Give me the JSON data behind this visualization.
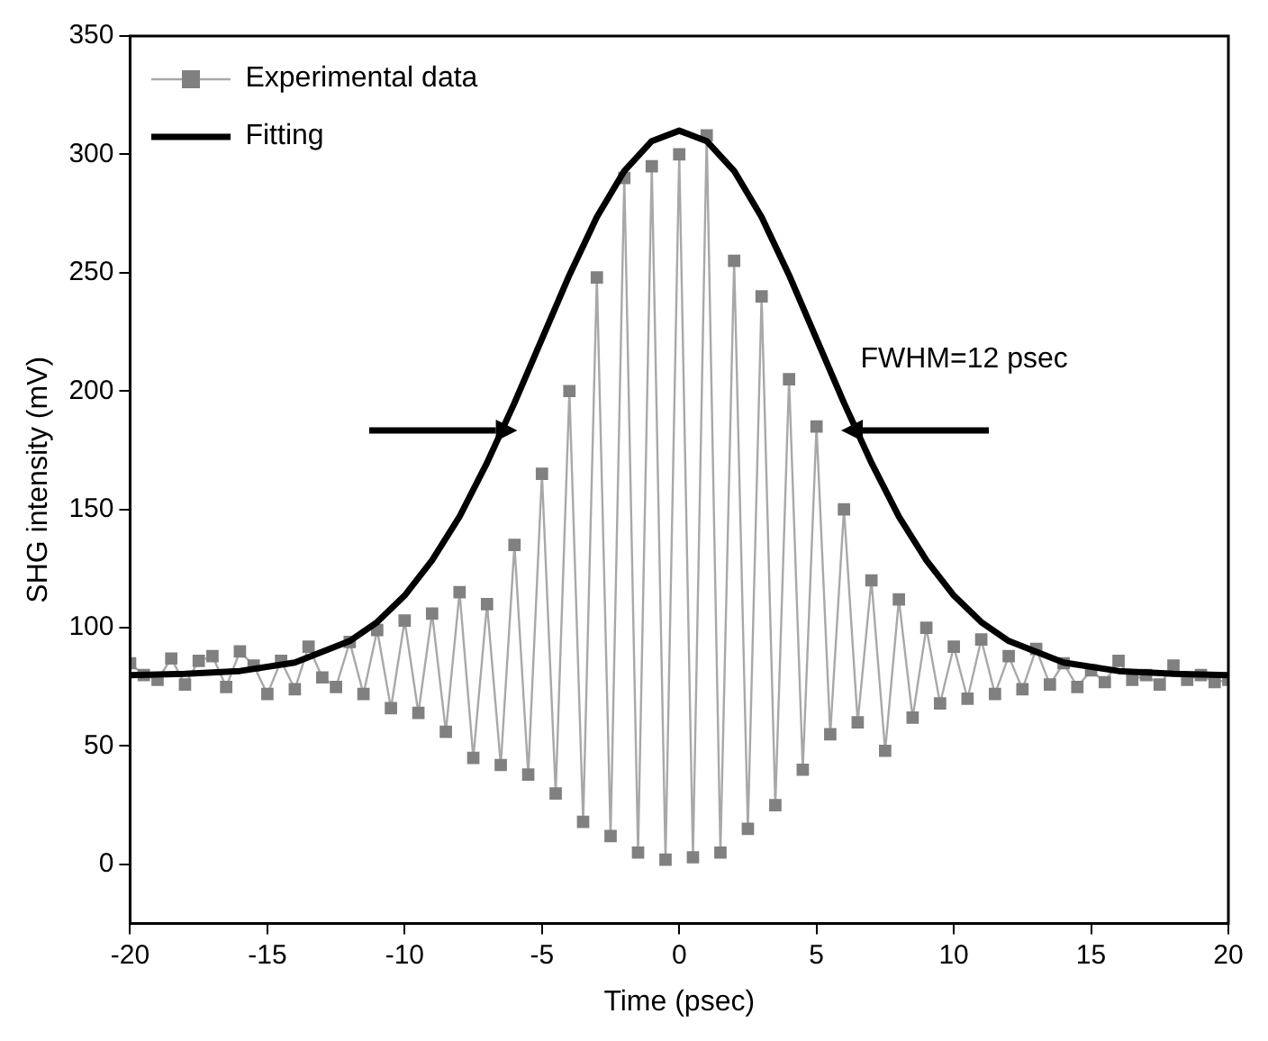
{
  "chart_data": {
    "type": "line",
    "xlabel": "Time (psec)",
    "ylabel": "SHG intensity (mV)",
    "xlim": [
      -20,
      20
    ],
    "xticks": [
      -20,
      -15,
      -10,
      -5,
      0,
      5,
      10,
      15,
      20
    ],
    "ylim": [
      -25,
      350
    ],
    "yticks": [
      0,
      50,
      100,
      150,
      200,
      250,
      300,
      350
    ],
    "legend": "top left",
    "annotations": [
      "FWHM=12 psec"
    ],
    "series": [
      {
        "name": "Experimental data",
        "marker": "square",
        "color": "#808080",
        "x": [
          -20,
          -19.5,
          -19,
          -18.5,
          -18,
          -17.5,
          -17,
          -16.5,
          -16,
          -15.5,
          -15,
          -14.5,
          -14,
          -13.5,
          -13,
          -12.5,
          -12,
          -11.5,
          -11,
          -10.5,
          -10,
          -9.5,
          -9,
          -8.5,
          -8,
          -7.5,
          -7,
          -6.5,
          -6,
          -5.5,
          -5,
          -4.5,
          -4,
          -3.5,
          -3,
          -2.5,
          -2,
          -1.5,
          -1,
          -0.5,
          0,
          0.5,
          1,
          1.5,
          2,
          2.5,
          3,
          3.5,
          4,
          4.5,
          5,
          5.5,
          6,
          6.5,
          7,
          7.5,
          8,
          8.5,
          9,
          9.5,
          10,
          10.5,
          11,
          11.5,
          12,
          12.5,
          13,
          13.5,
          14,
          14.5,
          15,
          15.5,
          16,
          16.5,
          17,
          17.5,
          18,
          18.5,
          19,
          19.5,
          20
        ],
        "values": [
          85,
          80,
          78,
          87,
          76,
          86,
          88,
          75,
          90,
          84,
          72,
          86,
          74,
          92,
          79,
          75,
          94,
          72,
          99,
          66,
          103,
          64,
          106,
          56,
          115,
          45,
          110,
          42,
          135,
          38,
          165,
          30,
          200,
          18,
          248,
          12,
          290,
          5,
          295,
          2,
          300,
          3,
          308,
          5,
          255,
          15,
          240,
          25,
          205,
          40,
          185,
          55,
          150,
          60,
          120,
          48,
          112,
          62,
          100,
          68,
          92,
          70,
          95,
          72,
          88,
          74,
          91,
          76,
          85,
          75,
          82,
          77,
          86,
          78,
          80,
          76,
          84,
          78,
          80,
          77,
          78
        ]
      },
      {
        "name": "Fitting",
        "marker": "none",
        "color": "#000000",
        "x": [
          -20,
          -18,
          -16,
          -14,
          -12,
          -11,
          -10,
          -9,
          -8,
          -7,
          -6,
          -5,
          -4,
          -3,
          -2,
          -1,
          0,
          1,
          2,
          3,
          4,
          5,
          6,
          7,
          8,
          9,
          10,
          11,
          12,
          14,
          16,
          18,
          20
        ],
        "values": [
          80,
          80.5,
          81.7,
          85.3,
          94.4,
          102.4,
          113.6,
          128.5,
          147,
          169.7,
          195,
          222,
          249,
          273.5,
          293,
          305.6,
          310,
          305.6,
          293,
          273.5,
          249,
          222,
          195,
          169.7,
          147,
          128.5,
          113.6,
          102.4,
          94.4,
          85.3,
          81.7,
          80.5,
          80
        ]
      }
    ]
  }
}
